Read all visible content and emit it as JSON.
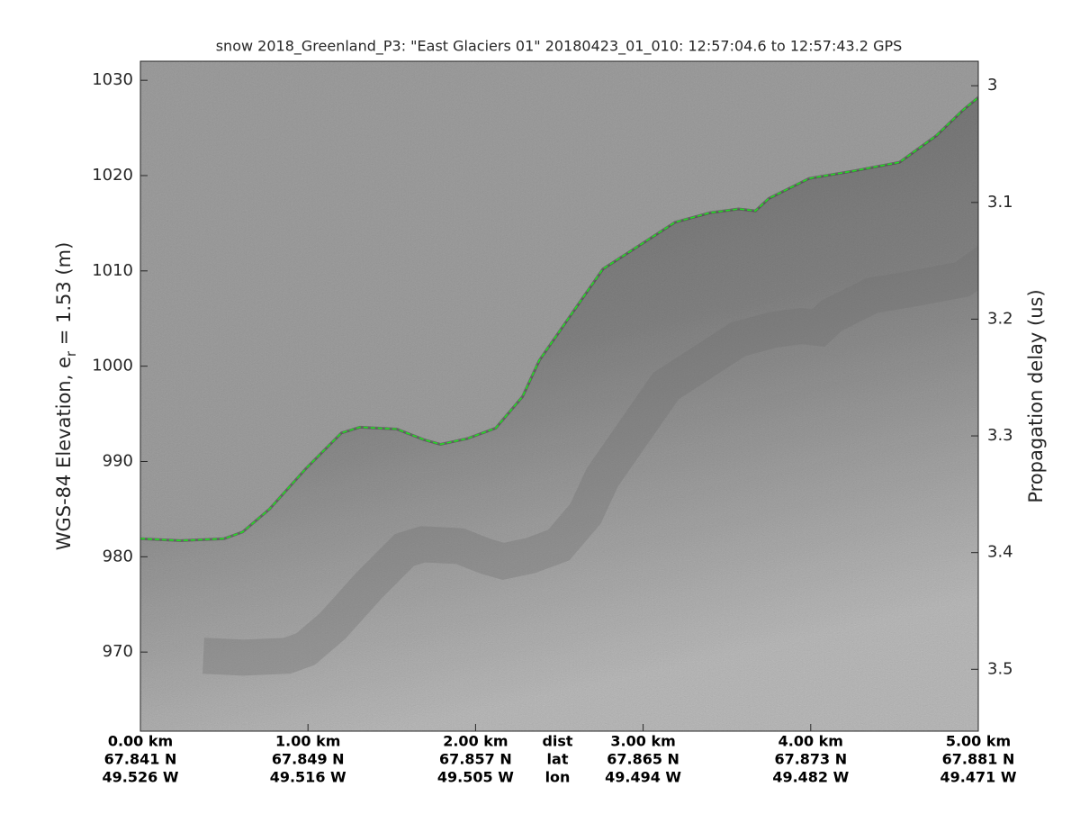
{
  "chart_data": {
    "type": "line",
    "title": "snow 2018_Greenland_P3: \"East Glaciers 01\"  20180423_01_010: 12:57:04.6 to 12:57:43.2 GPS",
    "ylabel": {
      "text": "WGS-84 Elevation, e",
      "sub": "r",
      "rest": " = 1.53 (m)"
    },
    "y2label": "Propagation delay (us)",
    "x": [
      0,
      0.24,
      0.5,
      0.61,
      0.77,
      0.99,
      1.2,
      1.31,
      1.53,
      1.69,
      1.79,
      1.95,
      2.12,
      2.28,
      2.38,
      2.55,
      2.76,
      2.98,
      3.19,
      3.4,
      3.57,
      3.67,
      3.75,
      3.99,
      4.26,
      4.53,
      4.75,
      4.91,
      5.0
    ],
    "values": [
      981.9,
      981.7,
      981.9,
      982.6,
      985.0,
      989.3,
      993.0,
      993.6,
      993.4,
      992.3,
      991.8,
      992.4,
      993.5,
      996.8,
      1000.6,
      1004.9,
      1010.2,
      1012.7,
      1015.1,
      1016.1,
      1016.5,
      1016.3,
      1017.6,
      1019.7,
      1020.5,
      1021.4,
      1024.2,
      1026.9,
      1028.2
    ],
    "color": "#22dd22",
    "xlim": [
      0,
      5
    ],
    "xticks": [
      {
        "value": 0,
        "label": "0.00 km"
      },
      {
        "value": 1,
        "label": "1.00 km"
      },
      {
        "value": 2,
        "label": "2.00 km"
      },
      {
        "value": 3,
        "label": "3.00 km"
      },
      {
        "value": 4,
        "label": "4.00 km"
      },
      {
        "value": 5,
        "label": "5.00 km"
      }
    ],
    "lat_labels": [
      "67.841 N",
      "67.849 N",
      "67.857 N",
      "67.865 N",
      "67.873 N",
      "67.881 N"
    ],
    "lon_labels": [
      "49.526 W",
      "49.516 W",
      "49.505 W",
      "49.494 W",
      "49.482 W",
      "49.471 W"
    ],
    "row_names": [
      "dist",
      "lat",
      "lon"
    ],
    "ylim": [
      961.7,
      1032
    ],
    "yticks": [
      970,
      980,
      990,
      1000,
      1010,
      1020,
      1030
    ],
    "y2lim": [
      3.553,
      2.979
    ],
    "y2ticks": [
      3,
      3.1,
      3.2,
      3.3,
      3.4,
      3.5
    ]
  }
}
